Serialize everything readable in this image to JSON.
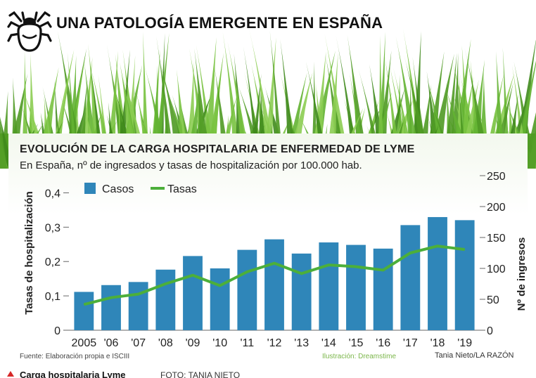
{
  "headline": "UNA PATOLOGÍA EMERGENTE EN ESPAÑA",
  "icon": "tick-icon",
  "colors": {
    "bars": "#2f86b9",
    "line": "#4caf3a",
    "grass": "#5fae2e",
    "accent": "#d62828"
  },
  "chart_data": {
    "type": "bar",
    "title": "EVOLUCIÓN DE LA CARGA HOSPITALARIA DE ENFERMEDAD DE LYME",
    "subtitle": "En España, nº de ingresados y tasas de hospitalización por 100.000 hab.",
    "categories": [
      "2005",
      "'06",
      "'07",
      "'08",
      "'09",
      "'10",
      "'11",
      "'12",
      "'13",
      "'14",
      "'15",
      "'16",
      "'17",
      "'18",
      "'19"
    ],
    "series": [
      {
        "name": "Casos",
        "type": "bar",
        "axis": "right",
        "values": [
          62,
          73,
          78,
          98,
          120,
          100,
          130,
          147,
          124,
          142,
          138,
          132,
          170,
          183,
          178
        ]
      },
      {
        "name": "Tasas",
        "type": "line",
        "axis": "left",
        "values": [
          0.075,
          0.095,
          0.105,
          0.135,
          0.16,
          0.13,
          0.17,
          0.195,
          0.165,
          0.19,
          0.185,
          0.175,
          0.225,
          0.245,
          0.235
        ]
      }
    ],
    "y_left": {
      "label": "Tasas de hospitalización",
      "range": [
        0,
        0.45
      ],
      "ticks": [
        "0",
        "0,1",
        "0,2",
        "0,3",
        "0,4"
      ],
      "tick_values": [
        0,
        0.1,
        0.2,
        0.3,
        0.4
      ]
    },
    "y_right": {
      "label": "Nº de ingresos",
      "range": [
        0,
        250
      ],
      "ticks": [
        "0",
        "50",
        "100",
        "150",
        "200",
        "250"
      ],
      "tick_values": [
        0,
        50,
        100,
        150,
        200,
        250
      ]
    },
    "legend": [
      "Casos",
      "Tasas"
    ],
    "legend_position": "top-left",
    "grid": false
  },
  "footer": {
    "source": "Fuente: Elaboración propia e ISCIII",
    "illustration": "Ilustración: Dreamstime",
    "credit": "Tania Nieto/LA RAZÓN"
  },
  "caption": {
    "title": "Carga hospitalaria Lyme",
    "photo": "FOTO: TANIA NIETO"
  }
}
